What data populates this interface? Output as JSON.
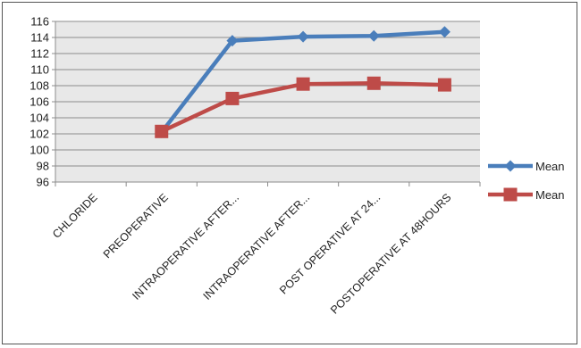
{
  "chart_data": {
    "type": "line",
    "categories": [
      "CHLORIDE",
      "PREOPERATIVE",
      "INTRAOPERATIVE AFTER...",
      "INTRAOPERATIVE AFTER...",
      "POST OPERATIVE AT 24...",
      "POSTOPERATIVE AT 48HOURS"
    ],
    "series": [
      {
        "name": "Mean",
        "color": "#4a7ebb",
        "marker": "diamond",
        "values": [
          null,
          102.2,
          113.6,
          114.1,
          114.2,
          114.7
        ]
      },
      {
        "name": "Mean",
        "color": "#be4b48",
        "marker": "square",
        "values": [
          null,
          102.3,
          106.4,
          108.2,
          108.3,
          108.1
        ]
      }
    ],
    "ylim": [
      96,
      116
    ],
    "yticks": [
      96,
      98,
      100,
      102,
      104,
      106,
      108,
      110,
      112,
      114,
      116
    ],
    "grid": true,
    "legend": "right",
    "plot_background": "#e8e8e8"
  }
}
